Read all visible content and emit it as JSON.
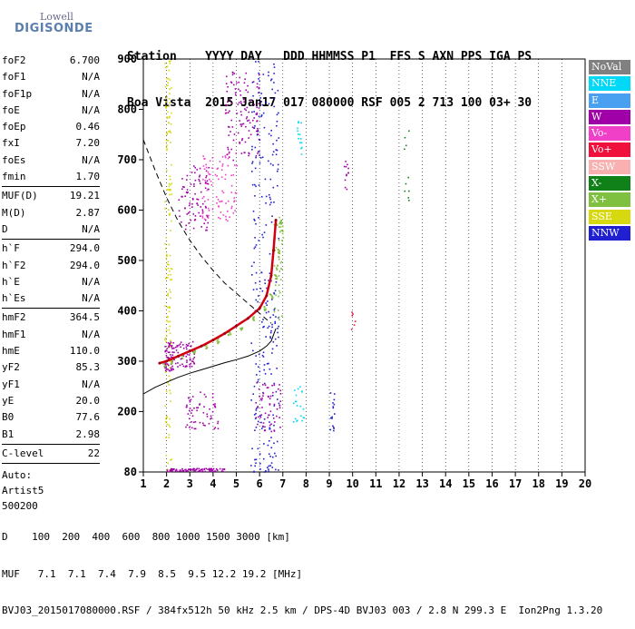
{
  "logo": {
    "top": "Lowell",
    "bottom": "DIGISONDE"
  },
  "header": {
    "line1": "Station    YYYY DAY   DDD HHMMSS P1  FFS S AXN PPS IGA PS",
    "line2": "Boa Vista  2015 Jan17 017 080000 RSF 005 2 713 100 03+ 30"
  },
  "params": [
    [
      {
        "label": "foF2",
        "value": "6.700"
      },
      {
        "label": "foF1",
        "value": "N/A"
      },
      {
        "label": "foF1p",
        "value": "N/A"
      },
      {
        "label": "foE",
        "value": "N/A"
      },
      {
        "label": "foEp",
        "value": "0.46"
      },
      {
        "label": "fxI",
        "value": "7.20"
      },
      {
        "label": "foEs",
        "value": "N/A"
      },
      {
        "label": "fmin",
        "value": "1.70"
      }
    ],
    [
      {
        "label": "MUF(D)",
        "value": "19.21"
      },
      {
        "label": "M(D)",
        "value": "2.87"
      },
      {
        "label": "D",
        "value": "N/A"
      }
    ],
    [
      {
        "label": "h`F",
        "value": "294.0"
      },
      {
        "label": "h`F2",
        "value": "294.0"
      },
      {
        "label": "h`E",
        "value": "N/A"
      },
      {
        "label": "h`Es",
        "value": "N/A"
      }
    ],
    [
      {
        "label": "hmF2",
        "value": "364.5"
      },
      {
        "label": "hmF1",
        "value": "N/A"
      },
      {
        "label": "hmE",
        "value": "110.0"
      },
      {
        "label": "yF2",
        "value": "85.3"
      },
      {
        "label": "yF1",
        "value": "N/A"
      },
      {
        "label": "yE",
        "value": "20.0"
      },
      {
        "label": "B0",
        "value": "77.6"
      },
      {
        "label": "B1",
        "value": "2.98"
      }
    ],
    [
      {
        "label": "C-level",
        "value": "22"
      }
    ]
  ],
  "autoscaling": {
    "line1": "Auto:",
    "line2": "Artist5",
    "line3": "500200"
  },
  "legend": [
    {
      "label": "NoVal",
      "color": "#808080"
    },
    {
      "label": "NNE",
      "color": "#00d8f8"
    },
    {
      "label": "E",
      "color": "#4aa0f0"
    },
    {
      "label": "W",
      "color": "#a000a8"
    },
    {
      "label": "Vo-",
      "color": "#f040c8"
    },
    {
      "label": "Vo+",
      "color": "#f0103c"
    },
    {
      "label": "SSW",
      "color": "#f8b0b0"
    },
    {
      "label": "X-",
      "color": "#108018"
    },
    {
      "label": "X+",
      "color": "#80c040"
    },
    {
      "label": "SSE",
      "color": "#d8d810"
    },
    {
      "label": "NNW",
      "color": "#2020d0"
    }
  ],
  "footer": {
    "line1": "D    100  200  400  600  800 1000 1500 3000 [km]",
    "line2": "MUF   7.1  7.1  7.4  7.9  8.5  9.5 12.2 19.2 [MHz]",
    "line3": "BVJ03_2015017080000.RSF / 384fx512h 50 kHz 2.5 km / DPS-4D BVJ03 003 / 2.8 N 299.3 E  Ion2Png 1.3.20"
  },
  "chart_data": {
    "type": "scatter",
    "title": "",
    "xlabel": "",
    "ylabel": "",
    "xlim": [
      1,
      20
    ],
    "ylim": [
      80,
      900
    ],
    "x_ticks": [
      1,
      2,
      3,
      4,
      5,
      6,
      7,
      8,
      9,
      10,
      11,
      12,
      13,
      14,
      15,
      16,
      17,
      18,
      19,
      20
    ],
    "y_ticks": [
      80,
      200,
      300,
      400,
      500,
      600,
      700,
      800,
      900
    ],
    "grid": "vertical dotted lines at integer MHz",
    "series": [
      {
        "name": "",
        "style": "red trace line",
        "x": [
          1.7,
          2.0,
          2.5,
          3.0,
          3.5,
          4.0,
          4.5,
          5.0,
          5.5,
          6.0,
          6.3,
          6.5,
          6.6,
          6.7
        ],
        "y": [
          296,
          300,
          310,
          320,
          330,
          342,
          355,
          370,
          385,
          405,
          430,
          470,
          520,
          580
        ]
      },
      {
        "name": "",
        "style": "black solid profile",
        "x": [
          1.0,
          1.5,
          2.0,
          2.5,
          3.0,
          3.5,
          4.0,
          4.5,
          5.0,
          5.5,
          6.0,
          6.3,
          6.5,
          6.7
        ],
        "y": [
          235,
          248,
          258,
          268,
          276,
          283,
          290,
          297,
          303,
          310,
          320,
          330,
          340,
          365
        ]
      },
      {
        "name": "",
        "style": "black dashed curve",
        "x": [
          1.0,
          1.5,
          2.0,
          2.5,
          3.0,
          3.5,
          4.0,
          4.5,
          5.0,
          5.5,
          6.0,
          6.3,
          6.5
        ],
        "y": [
          740,
          680,
          625,
          578,
          540,
          508,
          480,
          455,
          435,
          415,
          395,
          383,
          375
        ]
      }
    ]
  }
}
